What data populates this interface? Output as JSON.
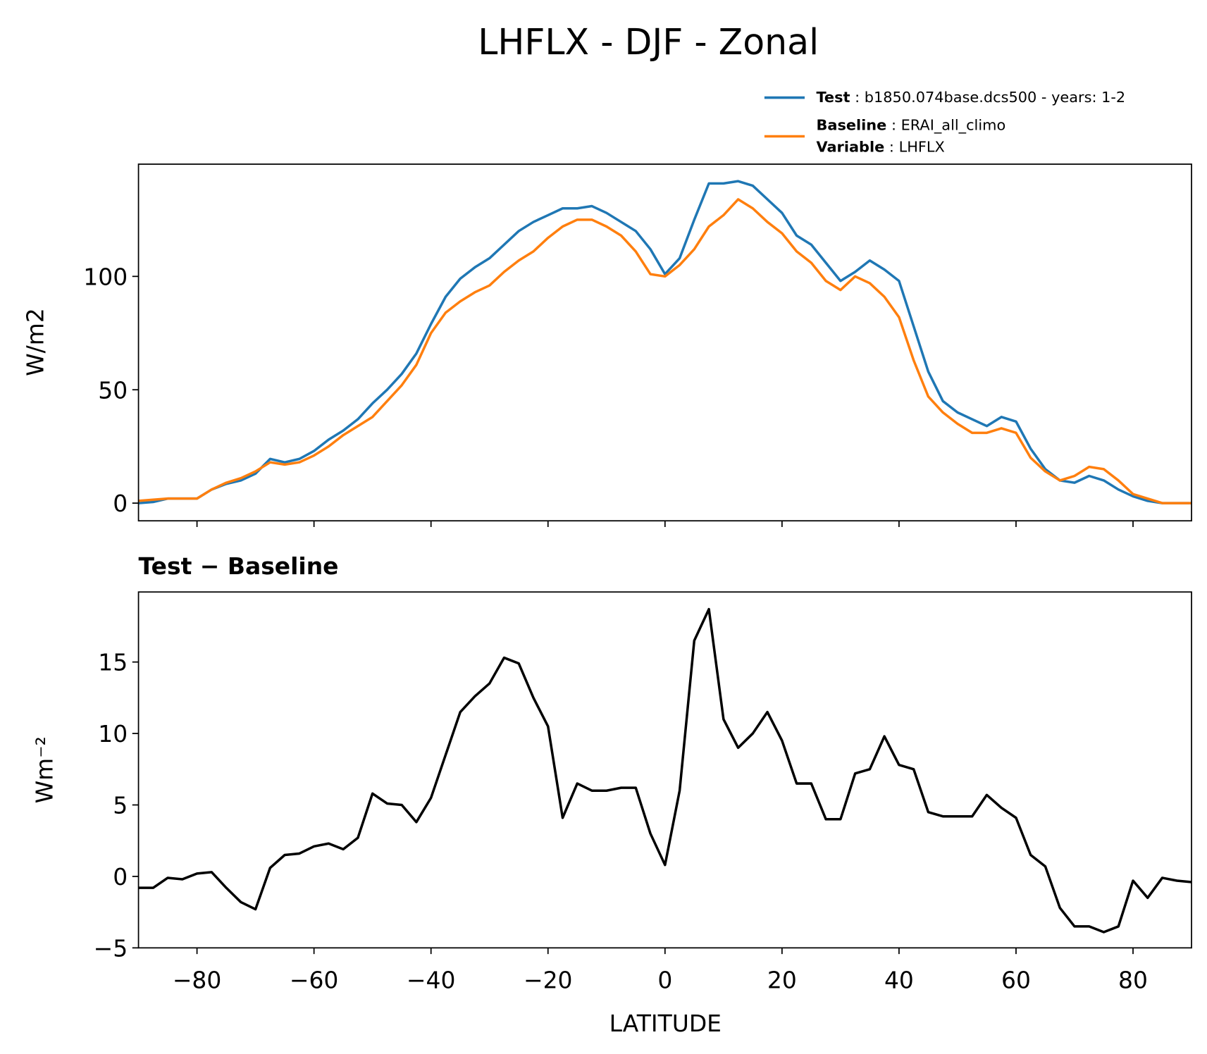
{
  "chart_data": [
    {
      "type": "line",
      "title": "LHFLX - DJF - Zonal",
      "ylabel": "W/m2",
      "x": [
        -90,
        -87.5,
        -85,
        -82.5,
        -80,
        -77.5,
        -75,
        -72.5,
        -70,
        -67.5,
        -65,
        -62.5,
        -60,
        -57.5,
        -55,
        -52.5,
        -50,
        -47.5,
        -45,
        -42.5,
        -40,
        -37.5,
        -35,
        -32.5,
        -30,
        -27.5,
        -25,
        -22.5,
        -20,
        -17.5,
        -15,
        -12.5,
        -10,
        -7.5,
        -5,
        -2.5,
        0,
        2.5,
        5,
        7.5,
        10,
        12.5,
        15,
        17.5,
        20,
        22.5,
        25,
        27.5,
        30,
        32.5,
        35,
        37.5,
        40,
        42.5,
        45,
        47.5,
        50,
        52.5,
        55,
        57.5,
        60,
        62.5,
        65,
        67.5,
        70,
        72.5,
        75,
        77.5,
        80,
        82.5,
        85,
        87.5,
        90
      ],
      "series": [
        {
          "name": "Test",
          "description": "b1850.074base.dcs500 - years: 1-2",
          "color": "#1f77b4",
          "values": [
            0,
            0.5,
            2,
            2,
            2,
            6,
            8.5,
            10,
            13,
            19.5,
            18,
            19.5,
            23,
            28,
            32,
            37,
            44,
            50,
            57,
            66,
            79,
            91,
            99,
            104,
            108,
            114,
            120,
            124,
            127,
            130,
            130,
            131,
            128,
            124,
            120,
            112,
            101,
            108,
            125,
            141,
            141,
            142,
            140,
            134,
            128,
            118,
            114,
            106,
            98,
            102,
            107,
            103,
            98,
            78,
            58,
            45,
            40,
            37,
            34,
            38,
            36,
            24,
            15,
            10,
            9,
            12,
            10,
            6,
            3,
            1,
            0,
            0,
            0
          ]
        },
        {
          "name": "Baseline",
          "description": "ERAI_all_climo",
          "color": "#ff7f0e",
          "values": [
            1,
            1.5,
            2,
            2,
            2,
            6,
            9,
            11,
            14,
            18,
            17,
            18,
            21,
            25,
            30,
            34,
            38,
            45,
            52,
            61,
            75,
            84,
            89,
            93,
            96,
            102,
            107,
            111,
            117,
            122,
            125,
            125,
            122,
            118,
            111,
            101,
            100,
            105,
            112,
            122,
            127,
            134,
            130,
            124,
            119,
            111,
            106,
            98,
            94,
            100,
            97,
            91,
            82,
            63,
            47,
            40,
            35,
            31,
            31,
            33,
            31,
            20,
            14,
            10,
            12,
            16,
            15,
            10,
            4,
            2,
            0,
            0,
            0
          ]
        }
      ],
      "variable_name": "Variable",
      "variable": "LHFLX",
      "xlim": [
        -90,
        90
      ],
      "xticks": [
        -80,
        -60,
        -40,
        -20,
        0,
        20,
        40,
        60,
        80
      ],
      "ylim": [
        -7.8,
        149.5
      ],
      "yticks": [
        0,
        50,
        100
      ]
    },
    {
      "type": "line",
      "title": "Test − Baseline",
      "xlabel": "LATITUDE",
      "ylabel": "Wm⁻²",
      "x": [
        -90,
        -87.5,
        -85,
        -82.5,
        -80,
        -77.5,
        -75,
        -72.5,
        -70,
        -67.5,
        -65,
        -62.5,
        -60,
        -57.5,
        -55,
        -52.5,
        -50,
        -47.5,
        -45,
        -42.5,
        -40,
        -37.5,
        -35,
        -32.5,
        -30,
        -27.5,
        -25,
        -22.5,
        -20,
        -17.5,
        -15,
        -12.5,
        -10,
        -7.5,
        -5,
        -2.5,
        0,
        2.5,
        5,
        7.5,
        10,
        12.5,
        15,
        17.5,
        20,
        22.5,
        25,
        27.5,
        30,
        32.5,
        35,
        37.5,
        40,
        42.5,
        45,
        47.5,
        50,
        52.5,
        55,
        57.5,
        60,
        62.5,
        65,
        67.5,
        70,
        72.5,
        75,
        77.5,
        80,
        82.5,
        85,
        87.5,
        90
      ],
      "series": [
        {
          "color": "#000000",
          "values": [
            -0.8,
            -0.8,
            -0.1,
            -0.2,
            0.2,
            0.3,
            -0.8,
            -1.8,
            -2.3,
            0.6,
            1.5,
            1.6,
            2.1,
            2.3,
            1.9,
            2.7,
            5.8,
            5.1,
            5.0,
            3.8,
            5.5,
            8.5,
            11.5,
            12.6,
            13.5,
            15.3,
            14.9,
            12.5,
            10.5,
            4.1,
            6.5,
            6.0,
            6.0,
            6.2,
            6.2,
            3,
            0.8,
            6,
            16.5,
            18.7,
            11,
            9,
            10,
            11.5,
            9.5,
            6.5,
            6.5,
            4,
            4,
            7.2,
            7.5,
            9.8,
            7.8,
            7.5,
            4.5,
            4.2,
            4.2,
            4.2,
            5.7,
            4.8,
            4.1,
            1.5,
            0.7,
            -2.2,
            -3.5,
            -3.5,
            -3.9,
            -3.5,
            -0.3,
            -1.5,
            -0.1,
            -0.3,
            -0.4
          ]
        }
      ],
      "xlim": [
        -90,
        90
      ],
      "xticks": [
        {
          "value": -80,
          "label": "−80"
        },
        {
          "value": -60,
          "label": "−60"
        },
        {
          "value": -40,
          "label": "−40"
        },
        {
          "value": -20,
          "label": "−20"
        },
        0,
        20,
        40,
        60,
        80
      ],
      "ylim": [
        -5,
        19.9
      ],
      "yticks": [
        {
          "value": -5,
          "label": "−5"
        },
        0,
        5,
        10,
        15
      ]
    }
  ]
}
